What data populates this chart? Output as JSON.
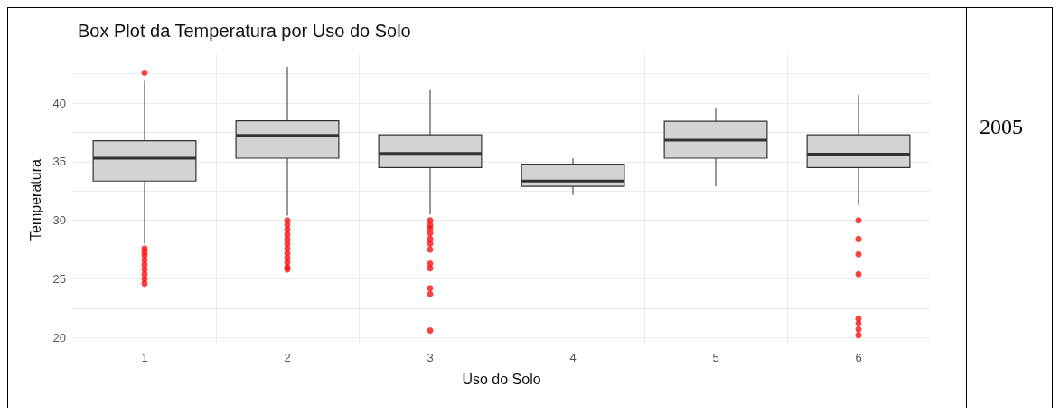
{
  "chart_data": {
    "type": "box",
    "title": "Box Plot da Temperatura por Uso do Solo",
    "xlabel": "Uso do Solo",
    "ylabel": "Temperatura",
    "annotations": [
      "2005"
    ],
    "categories": [
      "1",
      "2",
      "3",
      "4",
      "5",
      "6"
    ],
    "boxes": [
      {
        "low": 28.0,
        "q1": 33.35,
        "median": 35.3,
        "q3": 36.8,
        "high": 41.9,
        "outliers": [
          42.6,
          27.6,
          27.3,
          27.0,
          26.6,
          26.2,
          25.8,
          25.4,
          25.0,
          24.6
        ]
      },
      {
        "low": 30.4,
        "q1": 35.3,
        "median": 37.25,
        "q3": 38.5,
        "high": 43.1,
        "outliers": [
          30.0,
          29.6,
          29.2,
          28.8,
          28.4,
          28.0,
          27.6,
          27.2,
          26.8,
          26.4,
          26.0,
          25.8
        ]
      },
      {
        "low": 30.5,
        "q1": 34.5,
        "median": 35.7,
        "q3": 37.3,
        "high": 41.2,
        "outliers": [
          30.0,
          29.6,
          29.3,
          28.9,
          28.4,
          28.0,
          27.5,
          26.3,
          25.9,
          24.2,
          23.7,
          20.6
        ]
      },
      {
        "low": 32.15,
        "q1": 32.9,
        "median": 33.35,
        "q3": 34.8,
        "high": 35.3
      },
      {
        "low": 32.9,
        "q1": 35.3,
        "median": 36.85,
        "q3": 38.45,
        "high": 39.6
      },
      {
        "low": 31.3,
        "q1": 34.5,
        "median": 35.65,
        "q3": 37.3,
        "high": 40.7,
        "outliers": [
          30.0,
          28.4,
          27.1,
          25.4,
          21.6,
          21.2,
          20.7,
          20.2
        ]
      }
    ],
    "color": "#d3d3d3",
    "ylim": [
      19.4,
      44.1
    ],
    "yticks": [
      20,
      {
        "value": 22.5,
        "label": null
      },
      25,
      {
        "value": 27.5,
        "label": null
      },
      30,
      {
        "value": 32.5,
        "label": null
      },
      35,
      {
        "value": 37.5,
        "label": null
      },
      40,
      {
        "value": 42.5,
        "label": null
      }
    ],
    "grid": true
  }
}
